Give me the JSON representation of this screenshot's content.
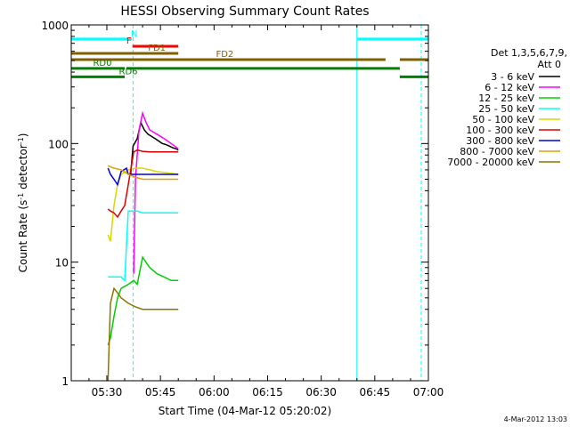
{
  "chart_data": {
    "type": "line",
    "title": "HESSI Observing Summary Count Rates",
    "xlabel": "Start Time (04-Mar-12 05:20:02)",
    "ylabel": "Count Rate (s",
    "ylabel_sup1": "-1",
    "ylabel_mid": " detector",
    "ylabel_sup2": "-1",
    "ylabel_end": ")",
    "y_scale": "log",
    "ylim": [
      1,
      1000
    ],
    "xlim": [
      "05:20:02",
      "07:00:00"
    ],
    "x_ticks": [
      "05:30",
      "05:45",
      "06:00",
      "06:15",
      "06:30",
      "06:45",
      "07:00"
    ],
    "y_ticks": [
      "1",
      "10",
      "100",
      "1000"
    ],
    "legend_title": [
      "Det 1,3,5,6,7,9,",
      "Att 0"
    ],
    "legend_placement": "right",
    "timestamp": "4-Mar-2012 13:03",
    "series": [
      {
        "name": "3 - 6 keV",
        "color": "#000000",
        "t": [
          "05:36:40",
          "05:37:20",
          "05:38:30",
          "05:39:30",
          "05:40:30",
          "05:41:30",
          "05:42:30",
          "05:43:30",
          "05:44:30",
          "05:45:30",
          "05:46:30",
          "05:47:30",
          "05:48:30",
          "05:49:30",
          "05:50:00"
        ],
        "values": [
          55,
          95,
          110,
          150,
          130,
          120,
          115,
          110,
          105,
          100,
          98,
          95,
          92,
          90,
          88
        ]
      },
      {
        "name": "6 - 12 keV",
        "color": "#ff00ff",
        "t": [
          "05:37:30",
          "05:38:00",
          "05:39:00",
          "05:40:00",
          "05:41:00",
          "05:42:00",
          "05:43:00",
          "05:44:00",
          "05:45:00",
          "05:46:00",
          "05:47:00",
          "05:48:00",
          "05:49:00",
          "05:50:00"
        ],
        "values": [
          8,
          50,
          130,
          180,
          150,
          130,
          125,
          120,
          115,
          110,
          105,
          100,
          95,
          90
        ]
      },
      {
        "name": "12 - 25 keV",
        "color": "#00d000",
        "t": [
          "05:30:20",
          "05:31:00",
          "05:32:00",
          "05:33:00",
          "05:34:00",
          "05:36:00",
          "05:37:30",
          "05:38:30",
          "05:40:00",
          "05:42:00",
          "05:44:00",
          "05:46:00",
          "05:48:00",
          "05:50:00"
        ],
        "values": [
          2,
          2.3,
          3.5,
          5,
          6,
          6.5,
          7,
          6.5,
          11,
          9,
          8,
          7.5,
          7,
          7
        ]
      },
      {
        "name": "25 - 50 keV",
        "color": "#00ffff",
        "t": [
          "05:30:20",
          "05:31:00",
          "05:32:30",
          "05:34:00",
          "05:35:00",
          "05:36:00",
          "05:37:00",
          "05:37:30",
          "05:38:30",
          "05:40:00",
          "05:42:00",
          "05:44:00",
          "05:46:00",
          "05:48:00",
          "05:50:00"
        ],
        "values": [
          7.5,
          7.5,
          7.5,
          7.5,
          7,
          27,
          27,
          27,
          27,
          26,
          26,
          26,
          26,
          26,
          26
        ]
      },
      {
        "name": "50 - 100 keV",
        "color": "#d8d800",
        "t": [
          "05:30:20",
          "05:31:00",
          "05:32:00",
          "05:33:00",
          "05:34:00",
          "05:36:00",
          "05:38:00",
          "05:40:00",
          "05:42:00",
          "05:44:00",
          "05:46:00",
          "05:48:00",
          "05:50:00"
        ],
        "values": [
          17,
          15,
          30,
          45,
          55,
          60,
          62,
          62,
          60,
          58,
          57,
          56,
          55
        ]
      },
      {
        "name": "100 - 300 keV",
        "color": "#dd0000",
        "t": [
          "05:30:20",
          "05:31:00",
          "05:32:00",
          "05:33:00",
          "05:34:00",
          "05:35:00",
          "05:36:00",
          "05:37:30",
          "05:38:30",
          "05:40:00",
          "05:42:00",
          "05:44:00",
          "05:46:00",
          "05:48:00",
          "05:50:00"
        ],
        "values": [
          28,
          27,
          26,
          24,
          27,
          30,
          45,
          85,
          88,
          86,
          85,
          85,
          85,
          85,
          85
        ]
      },
      {
        "name": "300 - 800 keV",
        "color": "#0000dd",
        "t": [
          "05:30:20",
          "05:31:00",
          "05:32:00",
          "05:33:00",
          "05:34:00",
          "05:35:30",
          "05:36:00",
          "05:38:00",
          "05:40:00",
          "05:42:00",
          "05:44:00",
          "05:46:00",
          "05:48:00",
          "05:50:00"
        ],
        "values": [
          62,
          55,
          50,
          45,
          58,
          62,
          55,
          55,
          55,
          55,
          55,
          55,
          55,
          55
        ]
      },
      {
        "name": "800 - 7000 keV",
        "color": "#e0a000",
        "t": [
          "05:30:20",
          "05:32:00",
          "05:34:00",
          "05:36:00",
          "05:38:00",
          "05:40:00",
          "05:42:00",
          "05:44:00",
          "05:46:00",
          "05:48:00",
          "05:50:00"
        ],
        "values": [
          65,
          62,
          60,
          55,
          52,
          50,
          50,
          50,
          50,
          50,
          50
        ]
      },
      {
        "name": "7000 - 20000 keV",
        "color": "#8b7500",
        "t": [
          "05:30:20",
          "05:31:00",
          "05:32:00",
          "05:33:00",
          "05:34:00",
          "05:36:00",
          "05:38:00",
          "05:40:00",
          "05:42:00",
          "05:44:00",
          "05:46:00",
          "05:48:00",
          "05:50:00"
        ],
        "values": [
          1,
          4.5,
          6,
          5.5,
          5,
          4.5,
          4.2,
          4,
          4,
          4,
          4,
          4,
          4
        ]
      }
    ],
    "flag_bars": [
      {
        "label": "N",
        "color": "#00ffff",
        "segments": [
          [
            "05:20:02",
            "05:37:00"
          ],
          [
            "06:40:00",
            "07:00:00"
          ]
        ],
        "y": 760
      },
      {
        "label": "F",
        "color": "#ff0000",
        "segments": [
          [
            "05:37:10",
            "05:50:00"
          ]
        ],
        "y": 660
      },
      {
        "label": "FD1",
        "color": "#806000",
        "segments": [
          [
            "05:20:02",
            "05:50:00"
          ]
        ],
        "y": 575
      },
      {
        "label": "FD2",
        "color": "#806000",
        "segments": [
          [
            "05:20:02",
            "06:48:00"
          ],
          [
            "06:52:00",
            "07:00:00"
          ]
        ],
        "y": 510
      },
      {
        "label": "RD0",
        "color": "#008000",
        "segments": [
          [
            "05:20:02",
            "05:35:00"
          ],
          [
            "05:35:30",
            "06:52:00"
          ]
        ],
        "y": 430
      },
      {
        "label": "RD6",
        "color": "#008000",
        "segments": [
          [
            "05:20:02",
            "05:35:00"
          ],
          [
            "06:52:00",
            "07:00:00"
          ]
        ],
        "y": 365
      }
    ],
    "vertical_markers": [
      {
        "time": "05:37:20",
        "color": "#00ffff",
        "style": "dashed"
      },
      {
        "time": "06:40:00",
        "color": "#00ffff",
        "style": "solid"
      },
      {
        "time": "06:58:00",
        "color": "#00ffff",
        "style": "dashed"
      }
    ]
  }
}
